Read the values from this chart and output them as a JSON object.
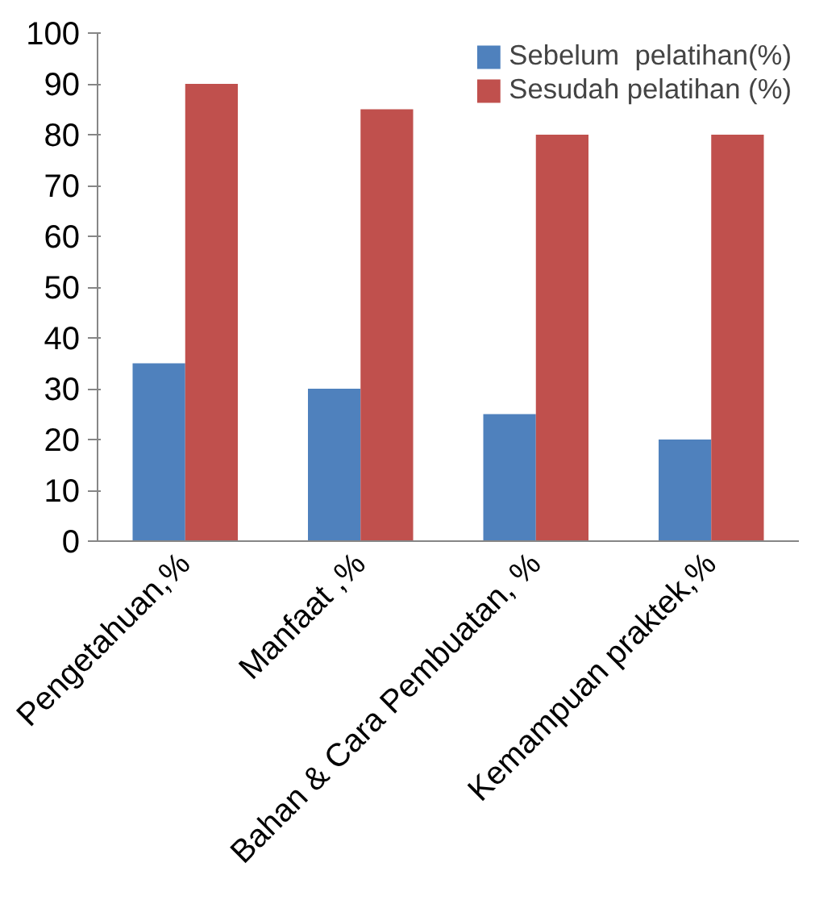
{
  "chart_data": {
    "type": "bar",
    "categories": [
      "Pengetahuan,%",
      "Manfaat ,%",
      "Bahan & Cara Pembuatan, %",
      "Kemampuan praktek,%"
    ],
    "series": [
      {
        "name": "Sebelum  pelatihan(%)",
        "color": "#4f81bd",
        "values": [
          35,
          30,
          25,
          20
        ]
      },
      {
        "name": "Sesudah pelatihan (%)",
        "color": "#c0504d",
        "values": [
          90,
          85,
          80,
          80
        ]
      }
    ],
    "ylim": [
      0,
      100
    ],
    "yticks": [
      0,
      10,
      20,
      30,
      40,
      50,
      60,
      70,
      80,
      90,
      100
    ],
    "grid": false,
    "legend": "top right"
  }
}
